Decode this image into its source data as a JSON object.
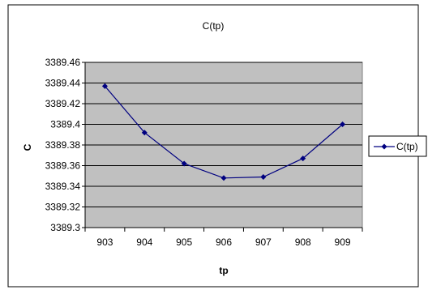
{
  "chart_data": {
    "type": "line",
    "title": "C(tp)",
    "xlabel": "tp",
    "ylabel": "C",
    "categories": [
      "903",
      "904",
      "905",
      "906",
      "907",
      "908",
      "909"
    ],
    "series": [
      {
        "name": "C(tp)",
        "values": [
          3389.437,
          3389.392,
          3389.362,
          3389.348,
          3389.349,
          3389.367,
          3389.4
        ],
        "color": "#000080",
        "marker": "diamond"
      }
    ],
    "ylim": [
      3389.3,
      3389.46
    ],
    "yticks": [
      "3389.3",
      "3389.32",
      "3389.34",
      "3389.36",
      "3389.38",
      "3389.4",
      "3389.42",
      "3389.44",
      "3389.46"
    ],
    "grid": true,
    "legend_position": "right",
    "plot_background": "#c0c0c0"
  }
}
